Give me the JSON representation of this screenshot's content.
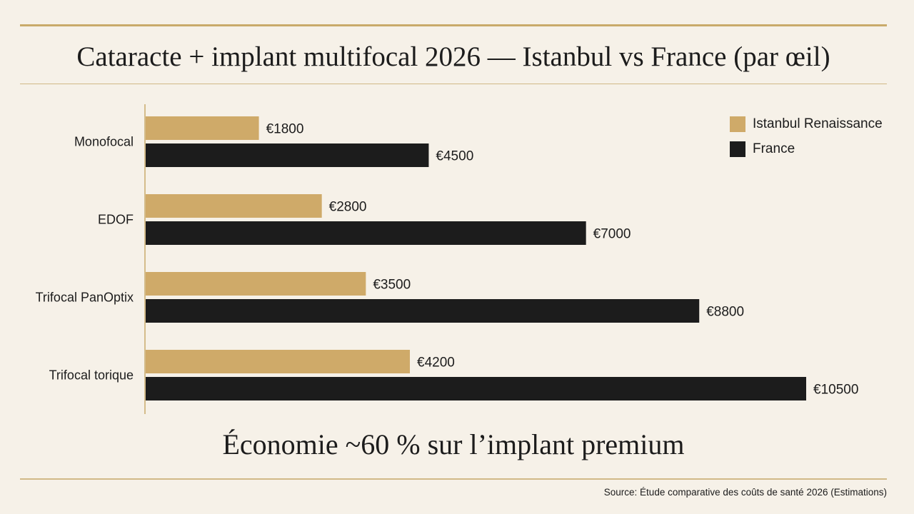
{
  "page": {
    "title": "Cataracte + implant multifocal 2026 — Istanbul vs France (par œil)",
    "subtitle": "Économie ~60 % sur l’implant premium",
    "source": "Source: Étude comparative des coûts de santé 2026 (Estimations)"
  },
  "colors": {
    "background": "#f6f1e8",
    "istanbul": "#cfaa69",
    "france": "#1c1c1c",
    "accent_rule": "#c9aa6a"
  },
  "chart_data": {
    "type": "bar",
    "orientation": "horizontal",
    "categories": [
      "Monofocal",
      "EDOF",
      "Trifocal PanOptix",
      "Trifocal torique"
    ],
    "series": [
      {
        "name": "Istanbul Renaissance",
        "values": [
          1800,
          2800,
          3500,
          4200
        ],
        "labels": [
          "€1800",
          "€2800",
          "€3500",
          "€4200"
        ]
      },
      {
        "name": "France",
        "values": [
          4500,
          7000,
          8800,
          10500
        ],
        "labels": [
          "€4500",
          "€7000",
          "€8800",
          "€10500"
        ]
      }
    ],
    "xlim": [
      0,
      10500
    ],
    "grid": false,
    "legend_position": "top-right"
  }
}
